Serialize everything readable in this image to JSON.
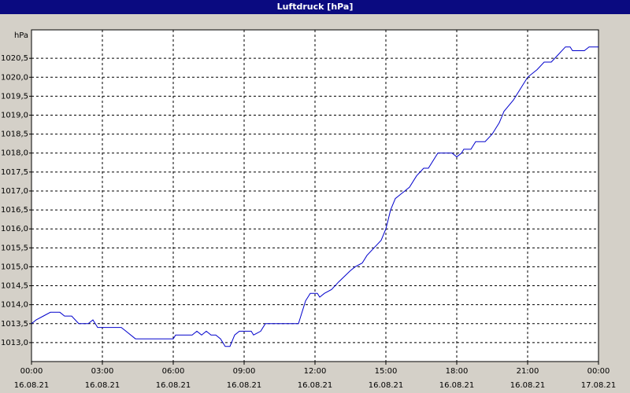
{
  "chart_data": {
    "type": "line",
    "title": "Luftdruck [hPa]",
    "y_label": "hPa",
    "x": [
      0,
      0.2,
      0.5,
      0.8,
      1.2,
      1.4,
      1.7,
      2.0,
      2.2,
      2.4,
      2.6,
      2.8,
      3.0,
      3.8,
      4.0,
      4.4,
      5.0,
      6.0,
      6.1,
      6.8,
      7.0,
      7.2,
      7.4,
      7.6,
      7.8,
      8.0,
      8.2,
      8.4,
      8.6,
      8.8,
      9.3,
      9.4,
      9.7,
      9.9,
      11.3,
      11.6,
      11.8,
      12.1,
      12.2,
      12.4,
      12.7,
      13.0,
      13.5,
      13.7,
      14.0,
      14.2,
      14.5,
      14.8,
      15.0,
      15.2,
      15.4,
      15.8,
      16.0,
      16.3,
      16.6,
      16.8,
      17.2,
      17.8,
      18.0,
      18.2,
      18.3,
      18.6,
      18.8,
      19.2,
      19.5,
      19.8,
      20.0,
      20.4,
      20.7,
      21.0,
      21.4,
      21.7,
      22.0,
      22.3,
      22.6,
      22.8,
      22.9,
      23.4,
      23.6,
      24.0
    ],
    "series": [
      {
        "name": "Luftdruck",
        "color": "#0000cc",
        "values": [
          1013.5,
          1013.6,
          1013.7,
          1013.8,
          1013.8,
          1013.7,
          1013.7,
          1013.5,
          1013.5,
          1013.5,
          1013.6,
          1013.4,
          1013.4,
          1013.4,
          1013.3,
          1013.1,
          1013.1,
          1013.1,
          1013.2,
          1013.2,
          1013.3,
          1013.2,
          1013.3,
          1013.2,
          1013.2,
          1013.1,
          1012.9,
          1012.9,
          1013.2,
          1013.3,
          1013.3,
          1013.2,
          1013.3,
          1013.5,
          1013.5,
          1014.1,
          1014.3,
          1014.3,
          1014.2,
          1014.3,
          1014.4,
          1014.6,
          1014.9,
          1015.0,
          1015.1,
          1015.3,
          1015.5,
          1015.7,
          1016.0,
          1016.5,
          1016.8,
          1017.0,
          1017.1,
          1017.4,
          1017.6,
          1017.6,
          1018.0,
          1018.0,
          1017.9,
          1018.0,
          1018.1,
          1018.1,
          1018.3,
          1018.3,
          1018.5,
          1018.8,
          1019.1,
          1019.4,
          1019.7,
          1020.0,
          1020.2,
          1020.4,
          1020.4,
          1020.6,
          1020.8,
          1020.8,
          1020.7,
          1020.7,
          1020.8,
          1020.8
        ]
      }
    ],
    "xlim": [
      0,
      24
    ],
    "xticks": [
      {
        "value": 0,
        "label": "00:00\n16.08.21"
      },
      {
        "value": 3,
        "label": "03:00\n16.08.21"
      },
      {
        "value": 6,
        "label": "06:00\n16.08.21"
      },
      {
        "value": 9,
        "label": "09:00\n16.08.21"
      },
      {
        "value": 12,
        "label": "12:00\n16.08.21"
      },
      {
        "value": 15,
        "label": "15:00\n16.08.21"
      },
      {
        "value": 18,
        "label": "18:00\n16.08.21"
      },
      {
        "value": 21,
        "label": "21:00\n16.08.21"
      },
      {
        "value": 24,
        "label": "00:00\n17.08.21"
      }
    ],
    "ylim": [
      1012.5,
      1021.25
    ],
    "yticks": [
      {
        "value": 1013,
        "label": "1013,0"
      },
      {
        "value": 1013.5,
        "label": "1013,5"
      },
      {
        "value": 1014,
        "label": "1014,0"
      },
      {
        "value": 1014.5,
        "label": "1014,5"
      },
      {
        "value": 1015,
        "label": "1015,0"
      },
      {
        "value": 1015.5,
        "label": "1015,5"
      },
      {
        "value": 1016,
        "label": "1016,0"
      },
      {
        "value": 1016.5,
        "label": "1016,5"
      },
      {
        "value": 1017,
        "label": "1017,0"
      },
      {
        "value": 1017.5,
        "label": "1017,5"
      },
      {
        "value": 1018,
        "label": "1018,0"
      },
      {
        "value": 1018.5,
        "label": "1018,5"
      },
      {
        "value": 1019,
        "label": "1019,0"
      },
      {
        "value": 1019.5,
        "label": "1019,5"
      },
      {
        "value": 1020,
        "label": "1020,0"
      },
      {
        "value": 1020.5,
        "label": "1020,5"
      }
    ],
    "grid": true
  }
}
